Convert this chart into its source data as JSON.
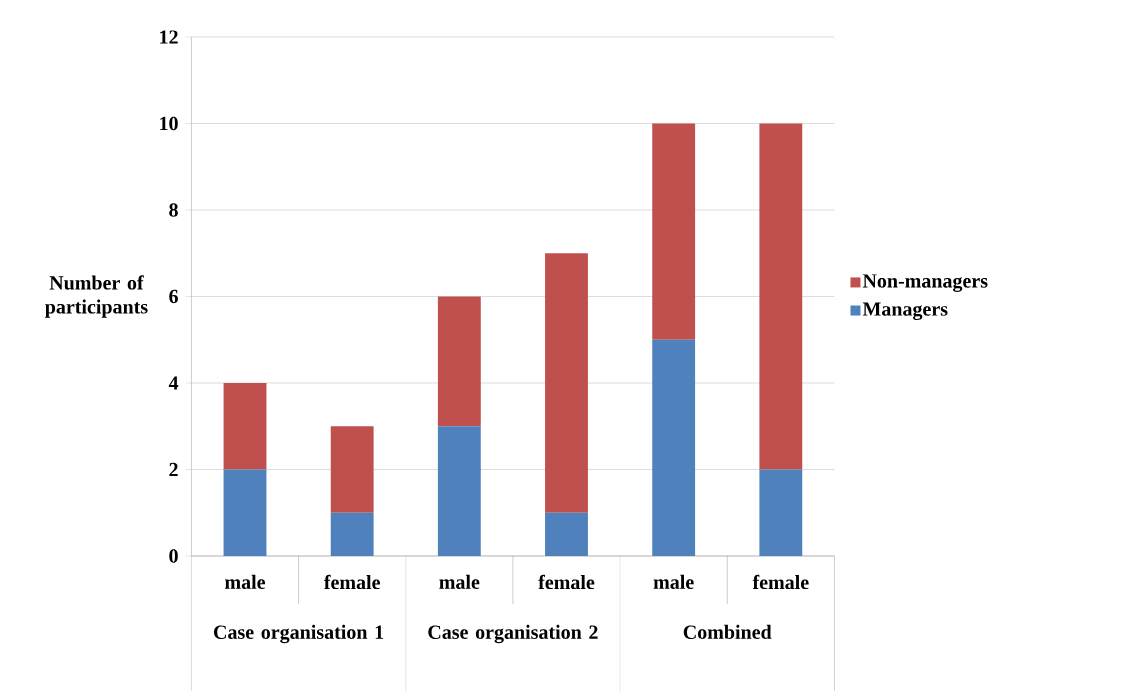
{
  "chart_data": {
    "type": "bar",
    "stacked": true,
    "ylabel": "Number of participants",
    "categories": [
      "male",
      "female",
      "male",
      "female",
      "male",
      "female"
    ],
    "series": [
      {
        "name": "Managers",
        "color": "#4f81bd",
        "values": [
          2,
          1,
          3,
          1,
          5,
          2
        ]
      },
      {
        "name": "Non-managers",
        "color": "#c0504d",
        "values": [
          2,
          2,
          3,
          6,
          5,
          8
        ]
      }
    ],
    "annotations": [
      "Case organisation 1",
      "Case organisation 2",
      "Combined"
    ],
    "ylim": [
      0,
      12
    ],
    "yticks": [
      0,
      2,
      4,
      6,
      8,
      10,
      12
    ],
    "grid": "y",
    "legend": "right"
  }
}
